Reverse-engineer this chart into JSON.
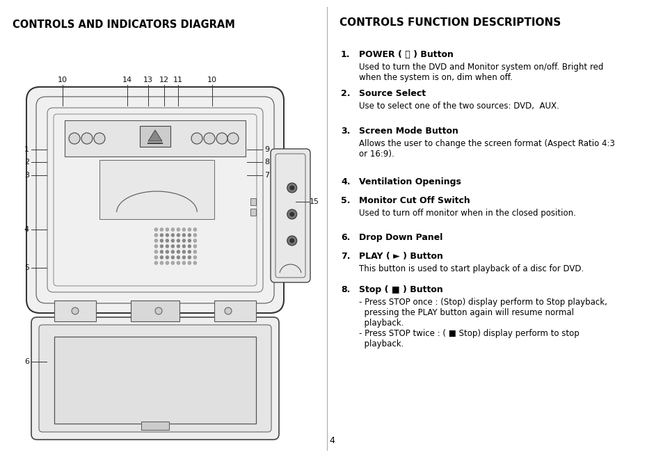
{
  "title_left": "CONTROLS AND INDICATORS DIAGRAM",
  "title_right": "CONTROLS FUNCTION DESCRIPTIONS",
  "bg_color": "#ffffff",
  "text_color": "#000000",
  "page_number": "4",
  "descriptions": [
    {
      "num": "1.",
      "bold": "POWER ( ⏽ ) Button",
      "normal": "Used to turn the DVD and Monitor system on/off. Bright red\nwhen the system is on, dim when off.",
      "has_normal": true
    },
    {
      "num": "2.",
      "bold": "Source Select",
      "normal": "Use to select one of the two sources: DVD,  AUX.",
      "has_normal": true
    },
    {
      "num": "3.",
      "bold": "Screen Mode Button",
      "normal": "Allows the user to change the screen format (Aspect Ratio 4:3\nor 16:9).",
      "has_normal": true
    },
    {
      "num": "4.",
      "bold": "Ventilation Openings",
      "normal": "",
      "has_normal": false
    },
    {
      "num": "5.",
      "bold": "Monitor Cut Off Switch",
      "normal": "Used to turn off monitor when in the closed position.",
      "has_normal": true
    },
    {
      "num": "6.",
      "bold": "Drop Down Panel",
      "normal": "",
      "has_normal": false
    },
    {
      "num": "7.",
      "bold": "PLAY ( ► ) Button",
      "normal": "This button is used to start playback of a disc for DVD.",
      "has_normal": true
    },
    {
      "num": "8.",
      "bold": "Stop ( ■ ) Button",
      "normal": "- Press STOP once : (Stop) display perform to Stop playback,\n  pressing the PLAY button again will resume normal\n  playback.\n- Press STOP twice : ( ■ Stop) display perform to stop\n  playback.",
      "has_normal": true
    }
  ]
}
